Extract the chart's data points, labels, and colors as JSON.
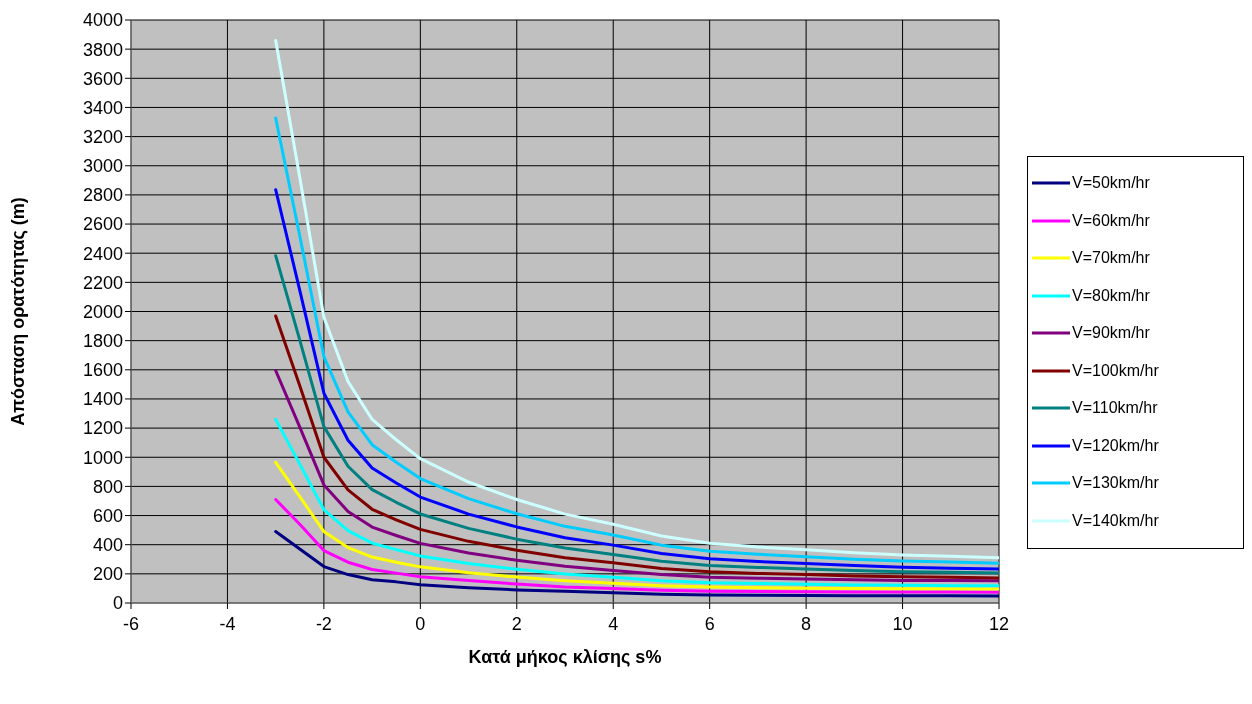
{
  "chart_data": {
    "type": "line",
    "xlabel": "Κατά μήκος κλίσης s%",
    "ylabel": "Απόσταση ορατότητας (m)",
    "x": [
      -3,
      -2.5,
      -2,
      -1.5,
      -1,
      -0.5,
      0,
      1,
      2,
      3,
      4,
      5,
      6,
      7,
      8,
      9,
      10,
      11,
      12
    ],
    "xlim": [
      -6,
      12
    ],
    "xticks": [
      -6,
      -4,
      -2,
      0,
      2,
      4,
      6,
      8,
      10,
      12
    ],
    "ylim": [
      0,
      4000
    ],
    "yticks": [
      0,
      200,
      400,
      600,
      800,
      1000,
      1200,
      1400,
      1600,
      1800,
      2000,
      2200,
      2400,
      2600,
      2800,
      3000,
      3200,
      3400,
      3600,
      3800,
      4000
    ],
    "grid": true,
    "legend": "right",
    "marker": "none",
    "line_style": "solid",
    "series": [
      {
        "name": "V=50km/hr",
        "color": "#000080",
        "values": [
          490,
          370,
          250,
          195,
          160,
          145,
          125,
          105,
          90,
          80,
          70,
          60,
          55,
          53,
          52,
          50,
          49,
          49,
          48
        ]
      },
      {
        "name": "V=60km/hr",
        "color": "#ff00ff",
        "values": [
          710,
          540,
          360,
          280,
          230,
          205,
          180,
          155,
          130,
          110,
          100,
          88,
          81,
          79,
          77,
          76,
          75,
          75,
          74
        ]
      },
      {
        "name": "V=70km/hr",
        "color": "#ffff00",
        "values": [
          965,
          730,
          490,
          380,
          315,
          280,
          248,
          208,
          178,
          153,
          135,
          118,
          109,
          105,
          102,
          99,
          97,
          97,
          96
        ]
      },
      {
        "name": "V=80km/hr",
        "color": "#00ffff",
        "values": [
          1260,
          953,
          640,
          496,
          411,
          366,
          323,
          271,
          232,
          199,
          176,
          153,
          139,
          134,
          129,
          124,
          121,
          119,
          118
        ]
      },
      {
        "name": "V=90km/hr",
        "color": "#800080",
        "values": [
          1595,
          1207,
          810,
          628,
          521,
          463,
          409,
          343,
          293,
          252,
          223,
          195,
          177,
          170,
          165,
          159,
          155,
          154,
          152
        ]
      },
      {
        "name": "V=100km/hr",
        "color": "#800000",
        "values": [
          1969,
          1490,
          1000,
          776,
          643,
          571,
          505,
          423,
          362,
          311,
          276,
          237,
          214,
          203,
          195,
          186,
          180,
          176,
          172
        ]
      },
      {
        "name": "V=110km/hr",
        "color": "#008080",
        "values": [
          2383,
          1803,
          1210,
          938,
          778,
          691,
          611,
          512,
          438,
          377,
          333,
          287,
          258,
          244,
          234,
          223,
          215,
          211,
          206
        ]
      },
      {
        "name": "V=120km/hr",
        "color": "#0000ff",
        "values": [
          2836,
          2145,
          1440,
          1117,
          926,
          823,
          727,
          610,
          522,
          448,
          397,
          339,
          303,
          285,
          271,
          257,
          246,
          239,
          233
        ]
      },
      {
        "name": "V=130km/hr",
        "color": "#00ccff",
        "values": [
          3328,
          2518,
          1690,
          1311,
          1086,
          966,
          854,
          716,
          612,
          526,
          466,
          397,
          355,
          335,
          318,
          301,
          289,
          281,
          273
        ]
      },
      {
        "name": "V=140km/hr",
        "color": "#ccffff",
        "values": [
          3860,
          2920,
          1960,
          1520,
          1260,
          1120,
          990,
          830,
          710,
          610,
          540,
          460,
          410,
          385,
          365,
          345,
          330,
          320,
          310
        ]
      }
    ]
  }
}
